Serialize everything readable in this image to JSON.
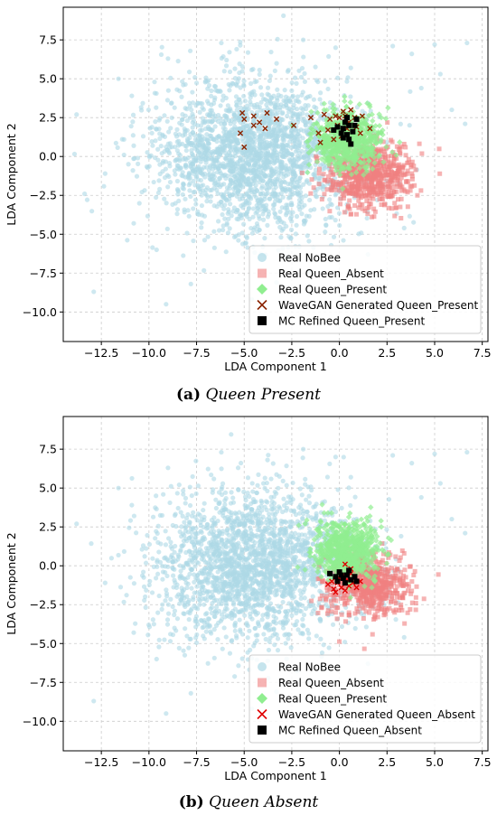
{
  "colors": {
    "nobee": "#add8e6",
    "queen_absent": "#f08080",
    "queen_present": "#90ee90",
    "wavegan_present": "#8b2500",
    "wavegan_absent": "#e00000",
    "mc": "#000000",
    "grid": "#cccccc"
  },
  "captions": [
    {
      "letter": "(a)",
      "text": "Queen Present"
    },
    {
      "letter": "(b)",
      "text": "Queen Absent"
    }
  ],
  "chart_data": [
    {
      "type": "scatter",
      "xlabel": "LDA Component 1",
      "ylabel": "LDA Component 2",
      "xlim": [
        -14.5,
        7.8
      ],
      "ylim": [
        -11.9,
        9.6
      ],
      "xticks": [
        -12.5,
        -10.0,
        -7.5,
        -5.0,
        -2.5,
        0.0,
        2.5,
        5.0,
        7.5
      ],
      "yticks": [
        -10.0,
        -7.5,
        -5.0,
        -2.5,
        0.0,
        2.5,
        5.0,
        7.5
      ],
      "xtick_labels": [
        "−12.5",
        "−10.0",
        "−7.5",
        "−5.0",
        "−2.5",
        "0.0",
        "2.5",
        "5.0",
        "7.5"
      ],
      "ytick_labels": [
        "−10.0",
        "−7.5",
        "−5.0",
        "−2.5",
        "0.0",
        "2.5",
        "5.0",
        "7.5"
      ],
      "grid": true,
      "legend_position": "lower-right",
      "series": [
        {
          "name": "Real NoBee",
          "marker": "circle",
          "color": "#add8e6",
          "cloud": {
            "center": [
              -4.5,
              0.0
            ],
            "spread": [
              2.6,
              2.4
            ],
            "count": 2200
          },
          "outliers": [
            [
              -13.8,
              2.7
            ],
            [
              -11.6,
              5.0
            ],
            [
              -10.9,
              3.9
            ],
            [
              -9.0,
              6.3
            ],
            [
              -8.2,
              4.6
            ],
            [
              -12.3,
              -1.1
            ],
            [
              -10.8,
              -4.3
            ],
            [
              -9.6,
              -6.0
            ],
            [
              -12.9,
              -8.7
            ],
            [
              -9.1,
              -9.5
            ],
            [
              -7.8,
              -8.2
            ],
            [
              -4.6,
              -9.2
            ],
            [
              -3.3,
              -8.1
            ],
            [
              -1.6,
              -7.4
            ],
            [
              1.5,
              -6.3
            ],
            [
              3.4,
              -4.6
            ],
            [
              5.0,
              7.2
            ],
            [
              6.7,
              7.3
            ],
            [
              5.9,
              3.0
            ],
            [
              6.6,
              2.1
            ],
            [
              5.3,
              5.3
            ],
            [
              4.3,
              4.4
            ],
            [
              3.8,
              6.6
            ],
            [
              -0.2,
              7.0
            ],
            [
              -1.9,
              7.5
            ],
            [
              2.8,
              7.1
            ],
            [
              -6.2,
              7.3
            ],
            [
              -10.3,
              1.3
            ],
            [
              -8.5,
              -3.4
            ],
            [
              0.6,
              5.7
            ]
          ]
        },
        {
          "name": "Real Queen_Absent",
          "marker": "square",
          "color": "#f08080",
          "cloud": {
            "center": [
              1.5,
              -1.2
            ],
            "spread": [
              1.1,
              1.0
            ],
            "count": 650
          },
          "outliers": [
            [
              3.6,
              -1.6
            ],
            [
              3.4,
              0.8
            ],
            [
              3.9,
              -0.6
            ],
            [
              2.9,
              -3.0
            ]
          ]
        },
        {
          "name": "Real Queen_Present",
          "marker": "diamond",
          "color": "#90ee90",
          "cloud": {
            "center": [
              0.4,
              1.0
            ],
            "spread": [
              0.9,
              0.9
            ],
            "count": 650
          },
          "outliers": [
            [
              -0.8,
              3.4
            ],
            [
              1.6,
              3.2
            ],
            [
              2.2,
              2.5
            ]
          ]
        },
        {
          "name": "WaveGAN Generated Queen_Present",
          "marker": "x",
          "color": "#8b2500",
          "points": [
            [
              -5.1,
              2.8
            ],
            [
              -5.0,
              2.4
            ],
            [
              -4.5,
              2.6
            ],
            [
              -4.2,
              2.2
            ],
            [
              -3.8,
              2.8
            ],
            [
              -4.5,
              2.0
            ],
            [
              -3.9,
              1.8
            ],
            [
              -3.3,
              2.4
            ],
            [
              -2.4,
              2.0
            ],
            [
              -1.5,
              2.5
            ],
            [
              -5.2,
              1.5
            ],
            [
              -5.0,
              0.6
            ],
            [
              -1.1,
              1.5
            ],
            [
              -0.8,
              2.7
            ],
            [
              -0.5,
              2.4
            ],
            [
              -0.2,
              2.6
            ],
            [
              0.0,
              2.5
            ],
            [
              0.2,
              2.9
            ],
            [
              0.3,
              2.6
            ],
            [
              0.6,
              3.0
            ],
            [
              0.8,
              2.5
            ],
            [
              1.2,
              2.6
            ],
            [
              1.1,
              1.5
            ],
            [
              1.6,
              1.8
            ],
            [
              0.9,
              1.9
            ],
            [
              0.1,
              1.3
            ],
            [
              -0.3,
              1.1
            ],
            [
              -1.0,
              0.9
            ],
            [
              -0.6,
              1.7
            ],
            [
              0.4,
              1.8
            ],
            [
              0.5,
              2.2
            ],
            [
              -0.1,
              2.0
            ]
          ]
        },
        {
          "name": "MC Refined Queen_Present",
          "marker": "square-filled",
          "color": "#000000",
          "points": [
            [
              -0.3,
              1.7
            ],
            [
              0.1,
              1.5
            ],
            [
              0.2,
              1.8
            ],
            [
              0.4,
              1.4
            ],
            [
              0.5,
              2.0
            ],
            [
              0.3,
              2.2
            ],
            [
              0.7,
              1.6
            ],
            [
              0.5,
              1.1
            ],
            [
              0.9,
              2.4
            ],
            [
              0.2,
              1.2
            ],
            [
              -0.1,
              1.9
            ],
            [
              0.6,
              0.8
            ],
            [
              0.8,
              2.0
            ],
            [
              0.4,
              2.5
            ]
          ]
        }
      ]
    },
    {
      "type": "scatter",
      "xlabel": "LDA Component 1",
      "ylabel": "LDA Component 2",
      "xlim": [
        -14.5,
        7.8
      ],
      "ylim": [
        -11.9,
        9.6
      ],
      "xticks": [
        -12.5,
        -10.0,
        -7.5,
        -5.0,
        -2.5,
        0.0,
        2.5,
        5.0,
        7.5
      ],
      "yticks": [
        -10.0,
        -7.5,
        -5.0,
        -2.5,
        0.0,
        2.5,
        5.0,
        7.5
      ],
      "xtick_labels": [
        "−12.5",
        "−10.0",
        "−7.5",
        "−5.0",
        "−2.5",
        "0.0",
        "2.5",
        "5.0",
        "7.5"
      ],
      "ytick_labels": [
        "−10.0",
        "−7.5",
        "−5.0",
        "−2.5",
        "0.0",
        "2.5",
        "5.0",
        "7.5"
      ],
      "grid": true,
      "legend_position": "lower-right",
      "series": [
        {
          "name": "Real NoBee",
          "marker": "circle",
          "color": "#add8e6",
          "cloud": {
            "center": [
              -4.5,
              0.0
            ],
            "spread": [
              2.6,
              2.4
            ],
            "count": 2200
          },
          "outliers": [
            [
              -13.8,
              2.7
            ],
            [
              -11.6,
              5.0
            ],
            [
              -10.9,
              3.9
            ],
            [
              -9.0,
              6.3
            ],
            [
              -8.2,
              4.6
            ],
            [
              -12.3,
              -1.1
            ],
            [
              -10.8,
              -4.3
            ],
            [
              -9.6,
              -6.0
            ],
            [
              -12.9,
              -8.7
            ],
            [
              -9.1,
              -9.5
            ],
            [
              -7.8,
              -8.2
            ],
            [
              -4.6,
              -9.2
            ],
            [
              -3.3,
              -8.1
            ],
            [
              -1.6,
              -7.4
            ],
            [
              1.5,
              -6.3
            ],
            [
              3.4,
              -4.6
            ],
            [
              5.0,
              7.2
            ],
            [
              6.7,
              7.3
            ],
            [
              5.9,
              3.0
            ],
            [
              6.6,
              2.1
            ],
            [
              5.3,
              5.3
            ],
            [
              4.3,
              4.4
            ],
            [
              3.8,
              6.6
            ],
            [
              -0.2,
              7.0
            ],
            [
              -1.9,
              7.5
            ],
            [
              2.8,
              7.1
            ],
            [
              -6.2,
              7.3
            ],
            [
              -10.3,
              1.3
            ],
            [
              -8.5,
              -3.4
            ],
            [
              0.6,
              5.7
            ]
          ]
        },
        {
          "name": "Real Queen_Absent",
          "marker": "square",
          "color": "#f08080",
          "cloud": {
            "center": [
              1.5,
              -1.2
            ],
            "spread": [
              1.1,
              1.0
            ],
            "count": 650
          },
          "outliers": [
            [
              3.6,
              -1.6
            ],
            [
              3.4,
              0.8
            ],
            [
              3.9,
              -0.6
            ],
            [
              2.9,
              -3.0
            ]
          ]
        },
        {
          "name": "Real Queen_Present",
          "marker": "diamond",
          "color": "#90ee90",
          "cloud": {
            "center": [
              0.4,
              1.0
            ],
            "spread": [
              0.9,
              0.9
            ],
            "count": 650
          },
          "outliers": [
            [
              -0.8,
              3.4
            ],
            [
              1.6,
              3.2
            ],
            [
              2.2,
              2.5
            ]
          ]
        },
        {
          "name": "WaveGAN Generated Queen_Absent",
          "marker": "x",
          "color": "#e00000",
          "points": [
            [
              -0.6,
              -1.2
            ],
            [
              -0.3,
              -1.5
            ],
            [
              -0.1,
              -1.1
            ],
            [
              0.1,
              -1.4
            ],
            [
              0.3,
              -1.6
            ],
            [
              0.5,
              -1.3
            ],
            [
              0.7,
              -1.1
            ],
            [
              0.4,
              -0.9
            ],
            [
              0.0,
              -0.8
            ],
            [
              -0.4,
              -1.0
            ],
            [
              0.9,
              -1.4
            ],
            [
              0.2,
              -0.6
            ],
            [
              0.6,
              -0.5
            ],
            [
              0.3,
              0.1
            ],
            [
              0.6,
              -0.2
            ],
            [
              -0.2,
              -1.7
            ],
            [
              0.8,
              -0.8
            ],
            [
              1.1,
              -1.0
            ]
          ]
        },
        {
          "name": "MC Refined Queen_Absent",
          "marker": "square-filled",
          "color": "#000000",
          "points": [
            [
              -0.5,
              -0.5
            ],
            [
              -0.2,
              -0.7
            ],
            [
              0.0,
              -0.4
            ],
            [
              0.2,
              -0.8
            ],
            [
              0.4,
              -0.6
            ],
            [
              0.6,
              -0.9
            ],
            [
              0.3,
              -1.1
            ],
            [
              0.8,
              -0.7
            ],
            [
              -0.1,
              -1.0
            ],
            [
              0.5,
              -0.3
            ],
            [
              0.9,
              -1.0
            ],
            [
              0.1,
              -0.6
            ]
          ]
        }
      ]
    }
  ]
}
